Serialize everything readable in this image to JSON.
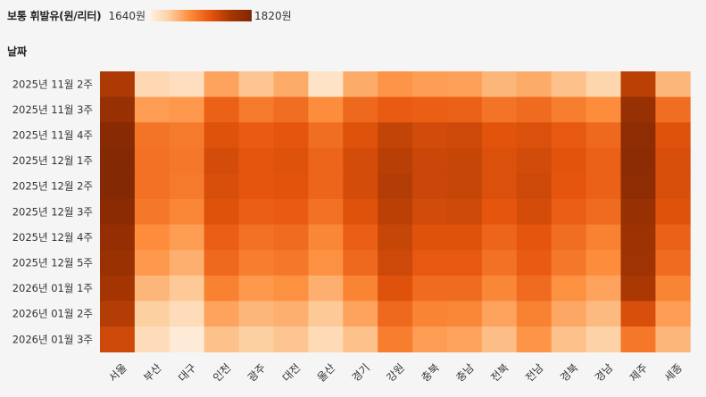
{
  "legend": {
    "title": "보통 휘발유(원/리터)",
    "min_label": "1640원",
    "max_label": "1820원"
  },
  "chart_data": {
    "type": "heatmap",
    "title": "",
    "xlabel": "",
    "ylabel": "날짜",
    "color_scale": {
      "min": 1640,
      "max": 1820,
      "colors": [
        "#fff5eb",
        "#fdd0a2",
        "#fd8d3c",
        "#e6550d",
        "#a63603",
        "#7f2704"
      ]
    },
    "x_categories": [
      "서울",
      "부산",
      "대구",
      "인천",
      "광주",
      "대전",
      "울산",
      "경기",
      "강원",
      "충북",
      "충남",
      "전북",
      "전남",
      "경북",
      "경남",
      "제주",
      "세종"
    ],
    "y_categories": [
      "2025년 11월 2주",
      "2025년 11월 3주",
      "2025년 11월 4주",
      "2025년 12월 1주",
      "2025년 12월 2주",
      "2025년 12월 3주",
      "2025년 12월 4주",
      "2025년 12월 5주",
      "2026년 01월 1주",
      "2026년 01월 2주",
      "2026년 01월 3주"
    ],
    "values": [
      [
        1780,
        1668,
        1662,
        1700,
        1682,
        1696,
        1658,
        1696,
        1708,
        1704,
        1702,
        1690,
        1696,
        1684,
        1670,
        1772,
        1690
      ],
      [
        1798,
        1704,
        1706,
        1740,
        1724,
        1732,
        1712,
        1736,
        1744,
        1742,
        1740,
        1728,
        1734,
        1722,
        1712,
        1798,
        1732
      ],
      [
        1812,
        1728,
        1724,
        1752,
        1744,
        1748,
        1732,
        1752,
        1768,
        1760,
        1762,
        1750,
        1754,
        1746,
        1736,
        1806,
        1752
      ],
      [
        1816,
        1730,
        1726,
        1758,
        1748,
        1752,
        1738,
        1758,
        1774,
        1764,
        1766,
        1754,
        1760,
        1750,
        1740,
        1808,
        1756
      ],
      [
        1816,
        1730,
        1724,
        1756,
        1748,
        1750,
        1738,
        1758,
        1776,
        1764,
        1766,
        1754,
        1762,
        1748,
        1740,
        1806,
        1756
      ],
      [
        1810,
        1726,
        1716,
        1752,
        1742,
        1744,
        1730,
        1752,
        1772,
        1760,
        1762,
        1748,
        1758,
        1742,
        1734,
        1798,
        1752
      ],
      [
        1800,
        1712,
        1704,
        1742,
        1730,
        1734,
        1716,
        1742,
        1766,
        1752,
        1752,
        1738,
        1748,
        1732,
        1720,
        1792,
        1740
      ],
      [
        1796,
        1706,
        1694,
        1736,
        1722,
        1726,
        1710,
        1736,
        1762,
        1746,
        1746,
        1730,
        1744,
        1726,
        1712,
        1790,
        1734
      ],
      [
        1786,
        1690,
        1680,
        1720,
        1706,
        1710,
        1694,
        1718,
        1752,
        1734,
        1734,
        1716,
        1734,
        1710,
        1700,
        1782,
        1718
      ],
      [
        1776,
        1676,
        1664,
        1700,
        1690,
        1694,
        1680,
        1700,
        1736,
        1718,
        1716,
        1700,
        1720,
        1698,
        1688,
        1756,
        1704
      ],
      [
        1762,
        1664,
        1650,
        1684,
        1676,
        1682,
        1666,
        1684,
        1722,
        1704,
        1700,
        1686,
        1708,
        1684,
        1674,
        1726,
        1690
      ]
    ]
  }
}
